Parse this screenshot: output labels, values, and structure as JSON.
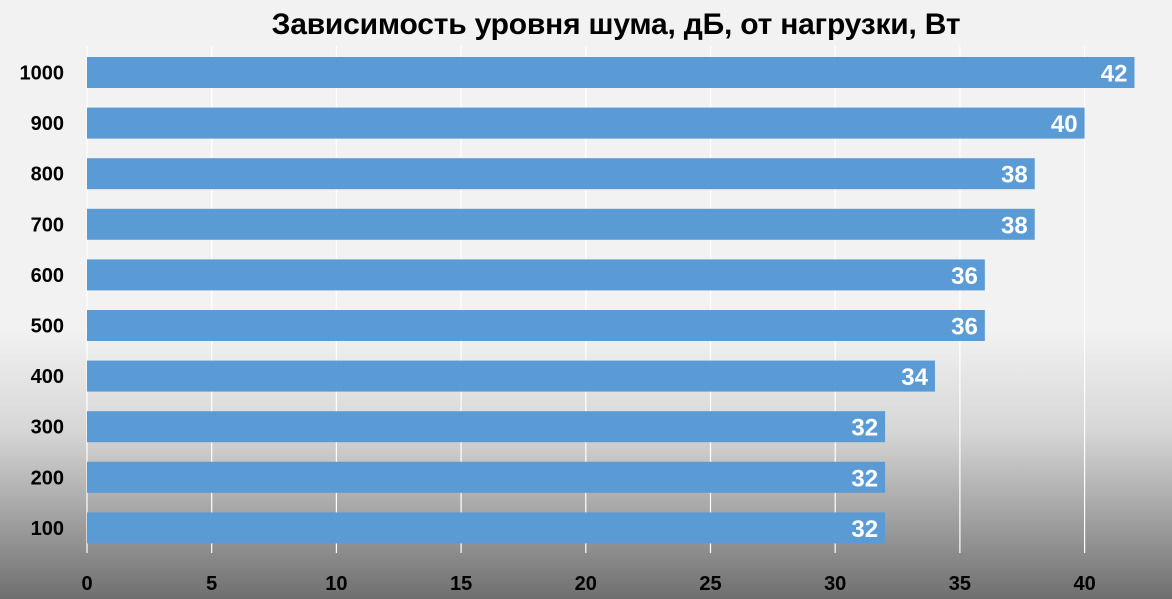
{
  "chart_data": {
    "type": "bar",
    "orientation": "horizontal",
    "title": "Зависимость уровня шума, дБ, от нагрузки, Вт",
    "categories": [
      "1000",
      "900",
      "800",
      "700",
      "600",
      "500",
      "400",
      "300",
      "200",
      "100"
    ],
    "values": [
      42,
      40,
      38,
      38,
      36,
      36,
      34,
      32,
      32,
      32
    ],
    "xlim": [
      0,
      42
    ],
    "x_ticks": [
      0,
      5,
      10,
      15,
      20,
      25,
      30,
      35,
      40
    ],
    "xlabel": "",
    "ylabel": "",
    "grid": true,
    "legend": "none",
    "data_labels": true,
    "colors": {
      "bar": "#5b9bd5",
      "grid": "#ffffff",
      "label": "#ffffff"
    }
  }
}
